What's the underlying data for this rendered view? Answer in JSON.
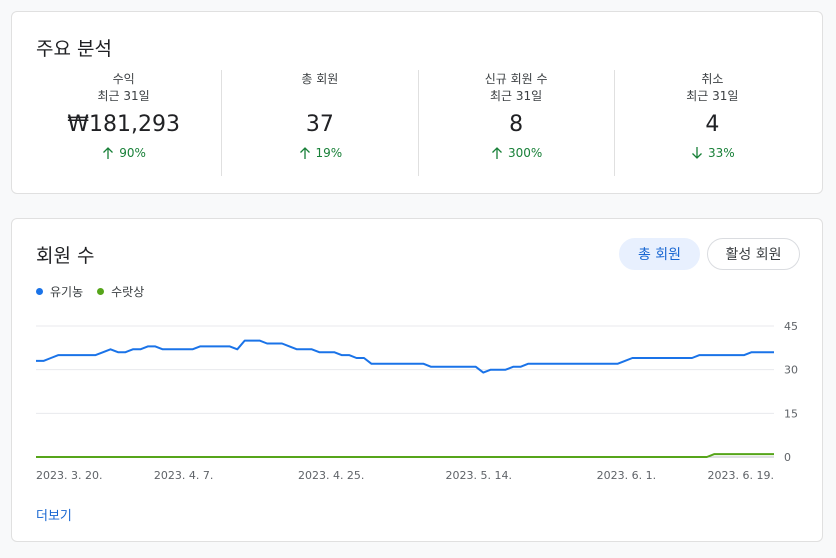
{
  "analysis": {
    "title": "주요 분석",
    "metrics": [
      {
        "label": "수익",
        "sub": "최근 31일",
        "value": "₩181,293",
        "change": "90%",
        "direction": "up"
      },
      {
        "label": "총 회원",
        "sub": "",
        "value": "37",
        "change": "19%",
        "direction": "up"
      },
      {
        "label": "신규 회원 수",
        "sub": "최근 31일",
        "value": "8",
        "change": "300%",
        "direction": "up"
      },
      {
        "label": "취소",
        "sub": "최근 31일",
        "value": "4",
        "change": "33%",
        "direction": "down"
      }
    ]
  },
  "members": {
    "title": "회원 수",
    "toggle_total": "총 회원",
    "toggle_active": "활성 회원",
    "more_link": "더보기"
  },
  "colors": {
    "accent": "#1967d2",
    "positive": "#188038",
    "series_organic": "#1a73e8",
    "series_paid": "#56a51a"
  },
  "chart_data": {
    "type": "line",
    "x_ticks": [
      "2023. 3. 20.",
      "2023. 4. 7.",
      "2023. 4. 25.",
      "2023. 5. 14.",
      "2023. 6. 1.",
      "2023. 6. 19."
    ],
    "y_ticks": [
      0,
      15,
      30,
      45
    ],
    "ylim": [
      0,
      45
    ],
    "grid": true,
    "legend": "top-left",
    "series": [
      {
        "name": "유기농",
        "color": "#1a73e8",
        "values": [
          33,
          33,
          34,
          35,
          35,
          35,
          35,
          35,
          35,
          36,
          37,
          36,
          36,
          37,
          37,
          38,
          38,
          37,
          37,
          37,
          37,
          37,
          38,
          38,
          38,
          38,
          38,
          37,
          40,
          40,
          40,
          39,
          39,
          39,
          38,
          37,
          37,
          37,
          36,
          36,
          36,
          35,
          35,
          34,
          34,
          32,
          32,
          32,
          32,
          32,
          32,
          32,
          32,
          31,
          31,
          31,
          31,
          31,
          31,
          31,
          29,
          30,
          30,
          30,
          31,
          31,
          32,
          32,
          32,
          32,
          32,
          32,
          32,
          32,
          32,
          32,
          32,
          32,
          32,
          33,
          34,
          34,
          34,
          34,
          34,
          34,
          34,
          34,
          34,
          35,
          35,
          35,
          35,
          35,
          35,
          35,
          36,
          36,
          36,
          36
        ]
      },
      {
        "name": "수랏상",
        "color": "#56a51a",
        "values": [
          0,
          0,
          0,
          0,
          0,
          0,
          0,
          0,
          0,
          0,
          0,
          0,
          0,
          0,
          0,
          0,
          0,
          0,
          0,
          0,
          0,
          0,
          0,
          0,
          0,
          0,
          0,
          0,
          0,
          0,
          0,
          0,
          0,
          0,
          0,
          0,
          0,
          0,
          0,
          0,
          0,
          0,
          0,
          0,
          0,
          0,
          0,
          0,
          0,
          0,
          0,
          0,
          0,
          0,
          0,
          0,
          0,
          0,
          0,
          0,
          0,
          0,
          0,
          0,
          0,
          0,
          0,
          0,
          0,
          0,
          0,
          0,
          0,
          0,
          0,
          0,
          0,
          0,
          0,
          0,
          0,
          0,
          0,
          0,
          0,
          0,
          0,
          0,
          0,
          0,
          0,
          1,
          1,
          1,
          1,
          1,
          1,
          1,
          1,
          1
        ]
      }
    ]
  }
}
